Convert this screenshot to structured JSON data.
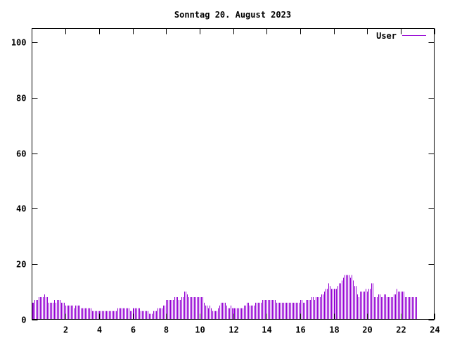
{
  "chart_data": {
    "type": "bar",
    "title": "Sonntag 20. August 2023",
    "xlabel": "",
    "ylabel": "",
    "xlim": [
      0,
      24
    ],
    "ylim": [
      0,
      105
    ],
    "x_ticks": [
      2,
      4,
      6,
      8,
      10,
      12,
      14,
      16,
      18,
      20,
      22,
      24
    ],
    "y_ticks": [
      0,
      20,
      40,
      60,
      80,
      100
    ],
    "grid": false,
    "legend_position": "top-right",
    "series": [
      {
        "name": "User",
        "color": "#9400d3",
        "step_minutes": 5,
        "x_start": 0,
        "values": [
          6,
          6,
          7,
          7,
          7,
          8,
          8,
          8,
          8,
          9,
          8,
          8,
          6,
          6,
          6,
          6,
          7,
          6,
          7,
          7,
          7,
          6,
          6,
          6,
          5,
          5,
          5,
          5,
          5,
          5,
          4,
          5,
          5,
          5,
          5,
          4,
          4,
          4,
          4,
          4,
          4,
          4,
          4,
          3,
          3,
          3,
          3,
          3,
          3,
          3,
          3,
          3,
          3,
          3,
          3,
          3,
          3,
          3,
          3,
          3,
          3,
          4,
          4,
          4,
          4,
          4,
          4,
          4,
          4,
          4,
          3,
          3,
          4,
          4,
          4,
          4,
          4,
          4,
          3,
          3,
          3,
          3,
          3,
          3,
          2,
          2,
          2,
          3,
          3,
          3,
          4,
          4,
          4,
          4,
          5,
          5,
          7,
          7,
          7,
          7,
          7,
          7,
          8,
          8,
          8,
          7,
          7,
          8,
          8,
          10,
          10,
          9,
          8,
          8,
          8,
          8,
          8,
          8,
          8,
          8,
          8,
          8,
          8,
          6,
          5,
          5,
          4,
          5,
          4,
          3,
          3,
          3,
          3,
          4,
          5,
          6,
          6,
          6,
          6,
          5,
          4,
          4,
          5,
          4,
          4,
          4,
          4,
          4,
          4,
          4,
          4,
          4,
          5,
          5,
          6,
          6,
          5,
          5,
          5,
          5,
          6,
          6,
          6,
          6,
          6,
          7,
          7,
          7,
          7,
          7,
          7,
          7,
          7,
          7,
          7,
          6,
          6,
          6,
          6,
          6,
          6,
          6,
          6,
          6,
          6,
          6,
          6,
          6,
          6,
          6,
          6,
          6,
          7,
          7,
          6,
          6,
          7,
          7,
          7,
          7,
          8,
          8,
          7,
          8,
          8,
          8,
          8,
          9,
          9,
          10,
          11,
          11,
          13,
          12,
          11,
          11,
          11,
          11,
          11,
          12,
          13,
          13,
          14,
          15,
          16,
          16,
          16,
          16,
          15,
          16,
          14,
          12,
          12,
          9,
          8,
          10,
          10,
          10,
          10,
          11,
          10,
          11,
          11,
          13,
          13,
          8,
          8,
          8,
          9,
          9,
          8,
          8,
          9,
          9,
          8,
          8,
          8,
          8,
          8,
          9,
          9,
          11,
          10,
          10,
          10,
          10,
          10,
          8,
          8,
          8,
          8,
          8,
          8,
          8,
          8,
          8
        ]
      }
    ]
  }
}
